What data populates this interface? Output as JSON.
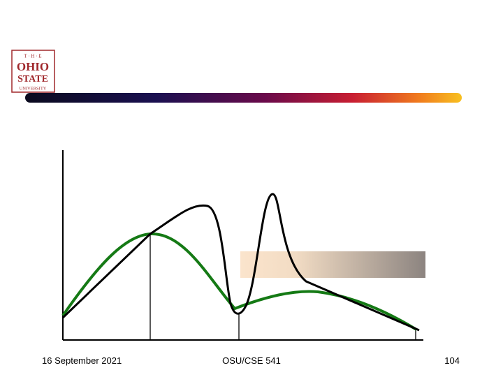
{
  "logo": {
    "top": "T · H · E",
    "line1": "OHIO",
    "line2": "STATE",
    "line3": "UNIVERSITY"
  },
  "footer": {
    "date": "16 September 2021",
    "course": "OSU/CSE 541",
    "page": "104"
  }
}
